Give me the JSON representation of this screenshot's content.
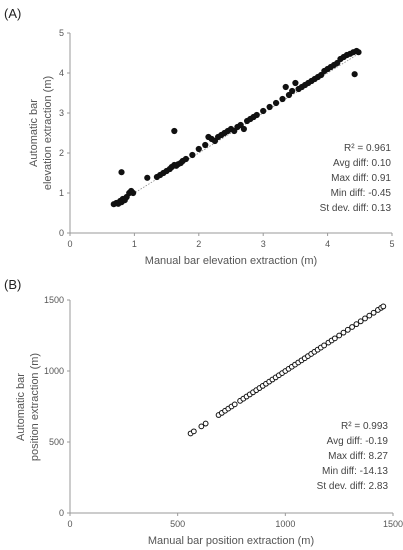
{
  "chart_data": [
    {
      "type": "scatter",
      "panel_label": "(A)",
      "xlabel": "Manual bar elevation extraction (m)",
      "ylabel_lines": [
        "Automatic bar",
        "elevation extraction (m)"
      ],
      "xlim": [
        0,
        5
      ],
      "ylim": [
        0,
        5
      ],
      "xticks": [
        "0",
        "1",
        "2",
        "3",
        "4",
        "5"
      ],
      "yticks": [
        "0",
        "1",
        "2",
        "3",
        "4",
        "5"
      ],
      "grid": false,
      "trendline": true,
      "stats": [
        "R² = 0.961",
        "Avg diff: 0.10",
        "Max diff: 0.91",
        "Min diff: -0.45",
        "St dev. diff: 0.13"
      ],
      "points": [
        [
          0.68,
          0.72
        ],
        [
          0.72,
          0.75
        ],
        [
          0.75,
          0.73
        ],
        [
          0.78,
          0.8
        ],
        [
          0.8,
          0.77
        ],
        [
          0.82,
          0.85
        ],
        [
          0.85,
          0.82
        ],
        [
          0.8,
          1.52
        ],
        [
          0.88,
          0.9
        ],
        [
          0.92,
          1.0
        ],
        [
          0.95,
          1.05
        ],
        [
          0.98,
          1.0
        ],
        [
          1.2,
          1.38
        ],
        [
          1.35,
          1.4
        ],
        [
          1.4,
          1.45
        ],
        [
          1.45,
          1.5
        ],
        [
          1.5,
          1.55
        ],
        [
          1.55,
          1.6
        ],
        [
          1.58,
          1.65
        ],
        [
          1.62,
          1.7
        ],
        [
          1.65,
          1.68
        ],
        [
          1.68,
          1.72
        ],
        [
          1.62,
          2.55
        ],
        [
          1.72,
          1.75
        ],
        [
          1.75,
          1.8
        ],
        [
          1.8,
          1.85
        ],
        [
          1.9,
          1.95
        ],
        [
          2.0,
          2.1
        ],
        [
          2.1,
          2.2
        ],
        [
          2.15,
          2.4
        ],
        [
          2.2,
          2.35
        ],
        [
          2.25,
          2.3
        ],
        [
          2.3,
          2.4
        ],
        [
          2.35,
          2.45
        ],
        [
          2.4,
          2.5
        ],
        [
          2.45,
          2.55
        ],
        [
          2.5,
          2.6
        ],
        [
          2.55,
          2.55
        ],
        [
          2.6,
          2.65
        ],
        [
          2.65,
          2.7
        ],
        [
          2.7,
          2.6
        ],
        [
          2.75,
          2.8
        ],
        [
          2.8,
          2.85
        ],
        [
          2.85,
          2.9
        ],
        [
          2.9,
          2.95
        ],
        [
          3.0,
          3.05
        ],
        [
          3.1,
          3.15
        ],
        [
          3.2,
          3.25
        ],
        [
          3.3,
          3.35
        ],
        [
          3.35,
          3.65
        ],
        [
          3.4,
          3.45
        ],
        [
          3.45,
          3.55
        ],
        [
          3.5,
          3.75
        ],
        [
          3.55,
          3.6
        ],
        [
          3.6,
          3.65
        ],
        [
          3.65,
          3.7
        ],
        [
          3.7,
          3.75
        ],
        [
          3.75,
          3.8
        ],
        [
          3.8,
          3.85
        ],
        [
          3.85,
          3.9
        ],
        [
          3.9,
          3.95
        ],
        [
          3.95,
          4.05
        ],
        [
          4.0,
          4.1
        ],
        [
          4.05,
          4.15
        ],
        [
          4.1,
          4.2
        ],
        [
          4.15,
          4.25
        ],
        [
          4.2,
          4.35
        ],
        [
          4.25,
          4.4
        ],
        [
          4.3,
          4.45
        ],
        [
          4.35,
          4.48
        ],
        [
          4.4,
          4.52
        ],
        [
          4.45,
          4.55
        ],
        [
          4.48,
          4.52
        ],
        [
          4.42,
          3.97
        ]
      ]
    },
    {
      "type": "scatter",
      "panel_label": "(B)",
      "xlabel": "Manual bar position extraction (m)",
      "ylabel_lines": [
        "Automatic bar",
        "position extraction (m)"
      ],
      "xlim": [
        0,
        1500
      ],
      "ylim": [
        0,
        1500
      ],
      "xticks": [
        "0",
        "500",
        "1000",
        "1500"
      ],
      "yticks": [
        "0",
        "500",
        "1000",
        "1500"
      ],
      "grid": false,
      "trendline": false,
      "stats": [
        "R² = 0.993",
        "Avg diff: -0.19",
        "Max diff: 8.27",
        "Min diff: -14.13",
        "St dev. diff: 2.83"
      ],
      "points": [
        [
          560,
          560
        ],
        [
          575,
          575
        ],
        [
          610,
          610
        ],
        [
          630,
          630
        ],
        [
          690,
          690
        ],
        [
          705,
          705
        ],
        [
          720,
          720
        ],
        [
          735,
          735
        ],
        [
          750,
          750
        ],
        [
          765,
          765
        ],
        [
          790,
          790
        ],
        [
          805,
          805
        ],
        [
          820,
          820
        ],
        [
          835,
          835
        ],
        [
          850,
          850
        ],
        [
          865,
          865
        ],
        [
          880,
          880
        ],
        [
          895,
          895
        ],
        [
          910,
          910
        ],
        [
          925,
          925
        ],
        [
          940,
          940
        ],
        [
          955,
          955
        ],
        [
          970,
          970
        ],
        [
          985,
          985
        ],
        [
          1000,
          1000
        ],
        [
          1015,
          1015
        ],
        [
          1030,
          1030
        ],
        [
          1045,
          1045
        ],
        [
          1060,
          1060
        ],
        [
          1075,
          1075
        ],
        [
          1090,
          1090
        ],
        [
          1105,
          1105
        ],
        [
          1120,
          1120
        ],
        [
          1135,
          1135
        ],
        [
          1150,
          1150
        ],
        [
          1165,
          1165
        ],
        [
          1180,
          1180
        ],
        [
          1200,
          1200
        ],
        [
          1215,
          1215
        ],
        [
          1230,
          1230
        ],
        [
          1250,
          1250
        ],
        [
          1270,
          1270
        ],
        [
          1290,
          1290
        ],
        [
          1310,
          1310
        ],
        [
          1330,
          1330
        ],
        [
          1350,
          1350
        ],
        [
          1370,
          1370
        ],
        [
          1390,
          1390
        ],
        [
          1410,
          1410
        ],
        [
          1430,
          1430
        ],
        [
          1445,
          1445
        ],
        [
          1455,
          1455
        ]
      ]
    }
  ]
}
